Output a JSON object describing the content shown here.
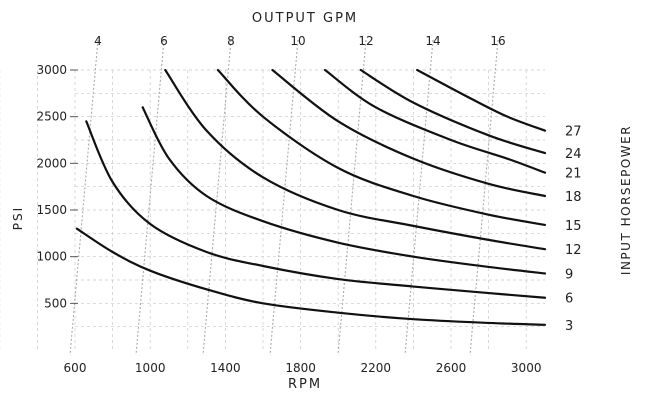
{
  "chart_data": {
    "type": "line",
    "title": "",
    "xlabel": "RPM",
    "ylabel": "PSI",
    "top_axis_label": "OUTPUT GPM",
    "right_axis_label": "INPUT HORSEPOWER",
    "xlim": [
      600,
      3100
    ],
    "ylim": [
      0,
      3000
    ],
    "x_ticks": [
      "600",
      "1000",
      "1400",
      "1800",
      "2200",
      "2600",
      "3000"
    ],
    "y_ticks": [
      "500",
      "1000",
      "1500",
      "2000",
      "2500",
      "3000"
    ],
    "gpm_ticks": [
      "4",
      "6",
      "8",
      "10",
      "12",
      "14",
      "16"
    ],
    "grid": true,
    "line_color": "#111111",
    "grid_color": "#c8c8c8",
    "series": [
      {
        "name": "3",
        "x": [
          610,
          800,
          1000,
          1300,
          1600,
          2000,
          2400,
          2800,
          3100
        ],
        "y": [
          1300,
          1050,
          850,
          650,
          500,
          400,
          330,
          290,
          270
        ]
      },
      {
        "name": "6",
        "x": [
          660,
          800,
          1000,
          1300,
          1600,
          2000,
          2400,
          2800,
          3100
        ],
        "y": [
          2450,
          1800,
          1350,
          1050,
          900,
          760,
          680,
          610,
          560
        ]
      },
      {
        "name": "9",
        "x": [
          960,
          1100,
          1300,
          1600,
          2000,
          2400,
          2800,
          3100
        ],
        "y": [
          2600,
          2050,
          1650,
          1380,
          1150,
          1000,
          890,
          820
        ]
      },
      {
        "name": "12",
        "x": [
          1080,
          1300,
          1600,
          2000,
          2400,
          2800,
          3100
        ],
        "y": [
          3000,
          2350,
          1850,
          1500,
          1330,
          1180,
          1080
        ]
      },
      {
        "name": "15",
        "x": [
          1360,
          1600,
          2000,
          2400,
          2800,
          3100
        ],
        "y": [
          3000,
          2500,
          1950,
          1650,
          1450,
          1340
        ]
      },
      {
        "name": "18",
        "x": [
          1650,
          2000,
          2400,
          2800,
          3100
        ],
        "y": [
          3000,
          2450,
          2050,
          1780,
          1650
        ]
      },
      {
        "name": "21",
        "x": [
          1930,
          2200,
          2600,
          2900,
          3100
        ],
        "y": [
          3000,
          2600,
          2250,
          2050,
          1900
        ]
      },
      {
        "name": "24",
        "x": [
          2120,
          2400,
          2800,
          3100
        ],
        "y": [
          3000,
          2650,
          2300,
          2110
        ]
      },
      {
        "name": "27",
        "x": [
          2420,
          2700,
          2900,
          3100
        ],
        "y": [
          3000,
          2700,
          2500,
          2350
        ]
      }
    ]
  }
}
